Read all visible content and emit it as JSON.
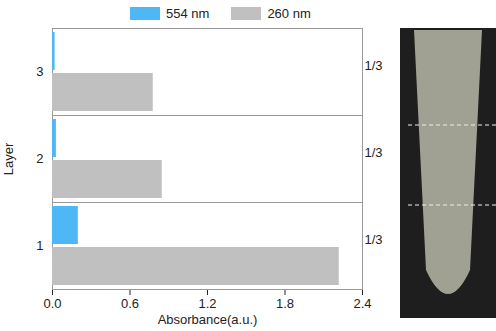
{
  "chart_data": {
    "type": "bar",
    "orientation": "horizontal",
    "xlabel": "Absorbance(a.u.)",
    "ylabel": "Layer",
    "categories": [
      "1",
      "2",
      "3"
    ],
    "series": [
      {
        "name": "554 nm",
        "color": "#4db8f5",
        "values": [
          0.2,
          0.03,
          0.02
        ]
      },
      {
        "name": "260 nm",
        "color": "#c0c0c0",
        "values": [
          2.22,
          0.85,
          0.78
        ]
      }
    ],
    "xlim": [
      0,
      2.4
    ],
    "xticks": [
      {
        "value": 0,
        "label": "0.0"
      },
      0.6,
      1.2,
      1.8,
      2.4
    ],
    "annotations": [
      {
        "text": "1/3",
        "category": "1"
      },
      {
        "text": "1/3",
        "category": "2"
      },
      {
        "text": "1/3",
        "category": "3"
      }
    ],
    "legend": "top"
  }
}
